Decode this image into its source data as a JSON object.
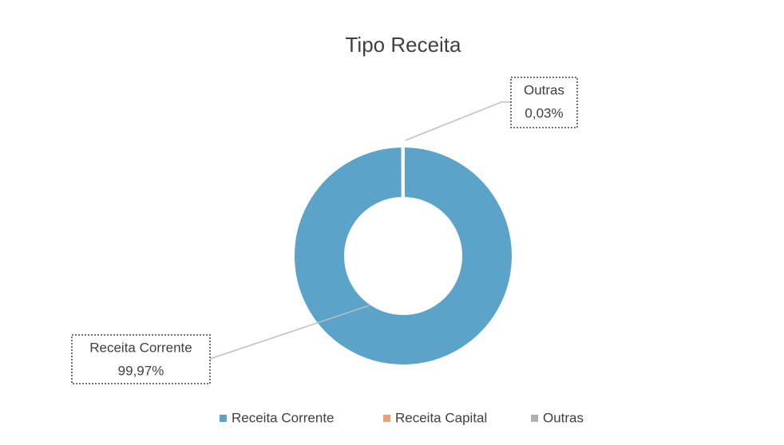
{
  "chart_data": {
    "type": "donut",
    "title": "Tipo Receita",
    "categories": [
      "Receita Corrente",
      "Receita Capital",
      "Outras"
    ],
    "values": [
      99.97,
      0,
      0.03
    ],
    "value_labels": [
      "99,97%",
      null,
      "0,03%"
    ],
    "colors": [
      "#5ba3c9",
      "#e8a07a",
      "#b0b0b0"
    ],
    "legend": "bottom"
  }
}
